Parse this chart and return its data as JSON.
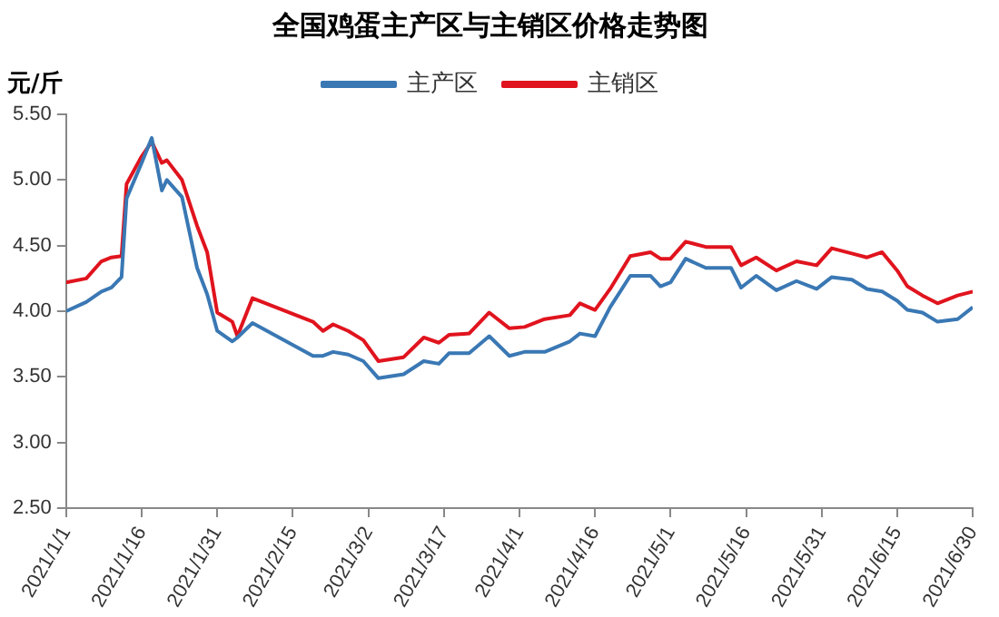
{
  "chart_data": {
    "type": "line",
    "title": "全国鸡蛋主产区与主销区价格走势图",
    "ylabel": "元/斤",
    "x": [
      "2021-01-01",
      "2021-01-05",
      "2021-01-08",
      "2021-01-10",
      "2021-01-12",
      "2021-01-13",
      "2021-01-16",
      "2021-01-18",
      "2021-01-20",
      "2021-01-21",
      "2021-01-24",
      "2021-01-27",
      "2021-01-29",
      "2021-01-31",
      "2021-02-03",
      "2021-02-04",
      "2021-02-07",
      "2021-02-19",
      "2021-02-21",
      "2021-02-23",
      "2021-02-26",
      "2021-03-01",
      "2021-03-04",
      "2021-03-09",
      "2021-03-13",
      "2021-03-16",
      "2021-03-18",
      "2021-03-22",
      "2021-03-26",
      "2021-03-30",
      "2021-04-02",
      "2021-04-06",
      "2021-04-11",
      "2021-04-13",
      "2021-04-16",
      "2021-04-19",
      "2021-04-23",
      "2021-04-27",
      "2021-04-29",
      "2021-05-01",
      "2021-05-04",
      "2021-05-08",
      "2021-05-13",
      "2021-05-15",
      "2021-05-18",
      "2021-05-22",
      "2021-05-26",
      "2021-05-30",
      "2021-06-02",
      "2021-06-06",
      "2021-06-09",
      "2021-06-12",
      "2021-06-15",
      "2021-06-17",
      "2021-06-20",
      "2021-06-23",
      "2021-06-27",
      "2021-06-30"
    ],
    "series": [
      {
        "name": "主产区",
        "color": "#3a78b4",
        "values": [
          4.0,
          4.07,
          4.15,
          4.18,
          4.26,
          4.86,
          5.13,
          5.32,
          4.92,
          5.0,
          4.87,
          4.33,
          4.13,
          3.85,
          3.77,
          3.8,
          3.91,
          3.66,
          3.66,
          3.69,
          3.67,
          3.62,
          3.49,
          3.52,
          3.62,
          3.6,
          3.68,
          3.68,
          3.81,
          3.66,
          3.69,
          3.69,
          3.77,
          3.83,
          3.81,
          4.03,
          4.27,
          4.27,
          4.19,
          4.22,
          4.4,
          4.33,
          4.33,
          4.18,
          4.27,
          4.16,
          4.23,
          4.17,
          4.26,
          4.24,
          4.17,
          4.15,
          4.08,
          4.01,
          3.99,
          3.92,
          3.94,
          4.03
        ]
      },
      {
        "name": "主销区",
        "color": "#e0141e",
        "values": [
          4.22,
          4.25,
          4.38,
          4.41,
          4.42,
          4.97,
          5.18,
          5.29,
          5.13,
          5.15,
          5.0,
          4.65,
          4.45,
          3.99,
          3.92,
          3.81,
          4.1,
          3.92,
          3.85,
          3.9,
          3.85,
          3.78,
          3.62,
          3.65,
          3.8,
          3.76,
          3.82,
          3.83,
          3.99,
          3.87,
          3.88,
          3.94,
          3.97,
          4.06,
          4.01,
          4.17,
          4.42,
          4.45,
          4.4,
          4.4,
          4.53,
          4.49,
          4.49,
          4.35,
          4.41,
          4.31,
          4.38,
          4.35,
          4.48,
          4.44,
          4.41,
          4.45,
          4.31,
          4.19,
          4.12,
          4.06,
          4.12,
          4.15
        ]
      }
    ],
    "xlim": [
      "2021-01-01",
      "2021-06-30"
    ],
    "xticks": [
      {
        "value": "2021-01-01",
        "label": "2021/1/1"
      },
      {
        "value": "2021-01-16",
        "label": "2021/1/16"
      },
      {
        "value": "2021-01-31",
        "label": "2021/1/31"
      },
      {
        "value": "2021-02-15",
        "label": "2021/2/15"
      },
      {
        "value": "2021-03-02",
        "label": "2021/3/2"
      },
      {
        "value": "2021-03-17",
        "label": "2021/3/17"
      },
      {
        "value": "2021-04-01",
        "label": "2021/4/1"
      },
      {
        "value": "2021-04-16",
        "label": "2021/4/16"
      },
      {
        "value": "2021-05-01",
        "label": "2021/5/1"
      },
      {
        "value": "2021-05-16",
        "label": "2021/5/16"
      },
      {
        "value": "2021-05-31",
        "label": "2021/5/31"
      },
      {
        "value": "2021-06-15",
        "label": "2021/6/15"
      },
      {
        "value": "2021-06-30",
        "label": "2021/6/30"
      }
    ],
    "ylim": [
      2.5,
      5.5
    ],
    "yticks": [
      {
        "value": 2.5,
        "label": "2.50"
      },
      {
        "value": 3.0,
        "label": "3.00"
      },
      {
        "value": 3.5,
        "label": "3.50"
      },
      {
        "value": 4.0,
        "label": "4.00"
      },
      {
        "value": 4.5,
        "label": "4.50"
      },
      {
        "value": 5.0,
        "label": "5.00"
      },
      {
        "value": 5.5,
        "label": "5.50"
      }
    ],
    "grid": false,
    "legend": "top",
    "marker": "none",
    "line_style": "solid"
  }
}
